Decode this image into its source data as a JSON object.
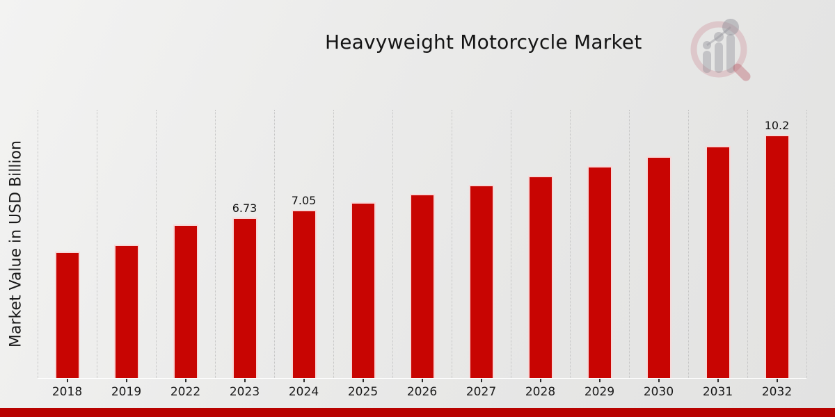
{
  "title": "Heavyweight Motorcycle Market",
  "y_axis_label": "Market Value in USD Billion",
  "chart_data": {
    "type": "bar",
    "title": "Heavyweight Motorcycle Market",
    "xlabel": "",
    "ylabel": "Market Value in USD Billion",
    "categories": [
      "2018",
      "2019",
      "2022",
      "2023",
      "2024",
      "2025",
      "2026",
      "2027",
      "2028",
      "2029",
      "2030",
      "2031",
      "2032"
    ],
    "values": [
      5.31,
      5.61,
      6.44,
      6.73,
      7.05,
      7.38,
      7.73,
      8.1,
      8.48,
      8.88,
      9.3,
      9.74,
      10.2
    ],
    "data_labels": [
      "",
      "",
      "",
      "6.73",
      "7.05",
      "",
      "",
      "",
      "",
      "",
      "",
      "",
      "10.2"
    ],
    "ylim": [
      0,
      11.25
    ],
    "grid": "vertical-dotted",
    "legend_position": "none",
    "bar_color": "#c80502"
  },
  "colors": {
    "bar": "#c80502",
    "accent_strip": "#b80200",
    "gridline": "#c3c3c3",
    "text": "#1a1a1a"
  },
  "icons": {
    "logo": "magnifying-glass-bar-chart-logo"
  }
}
